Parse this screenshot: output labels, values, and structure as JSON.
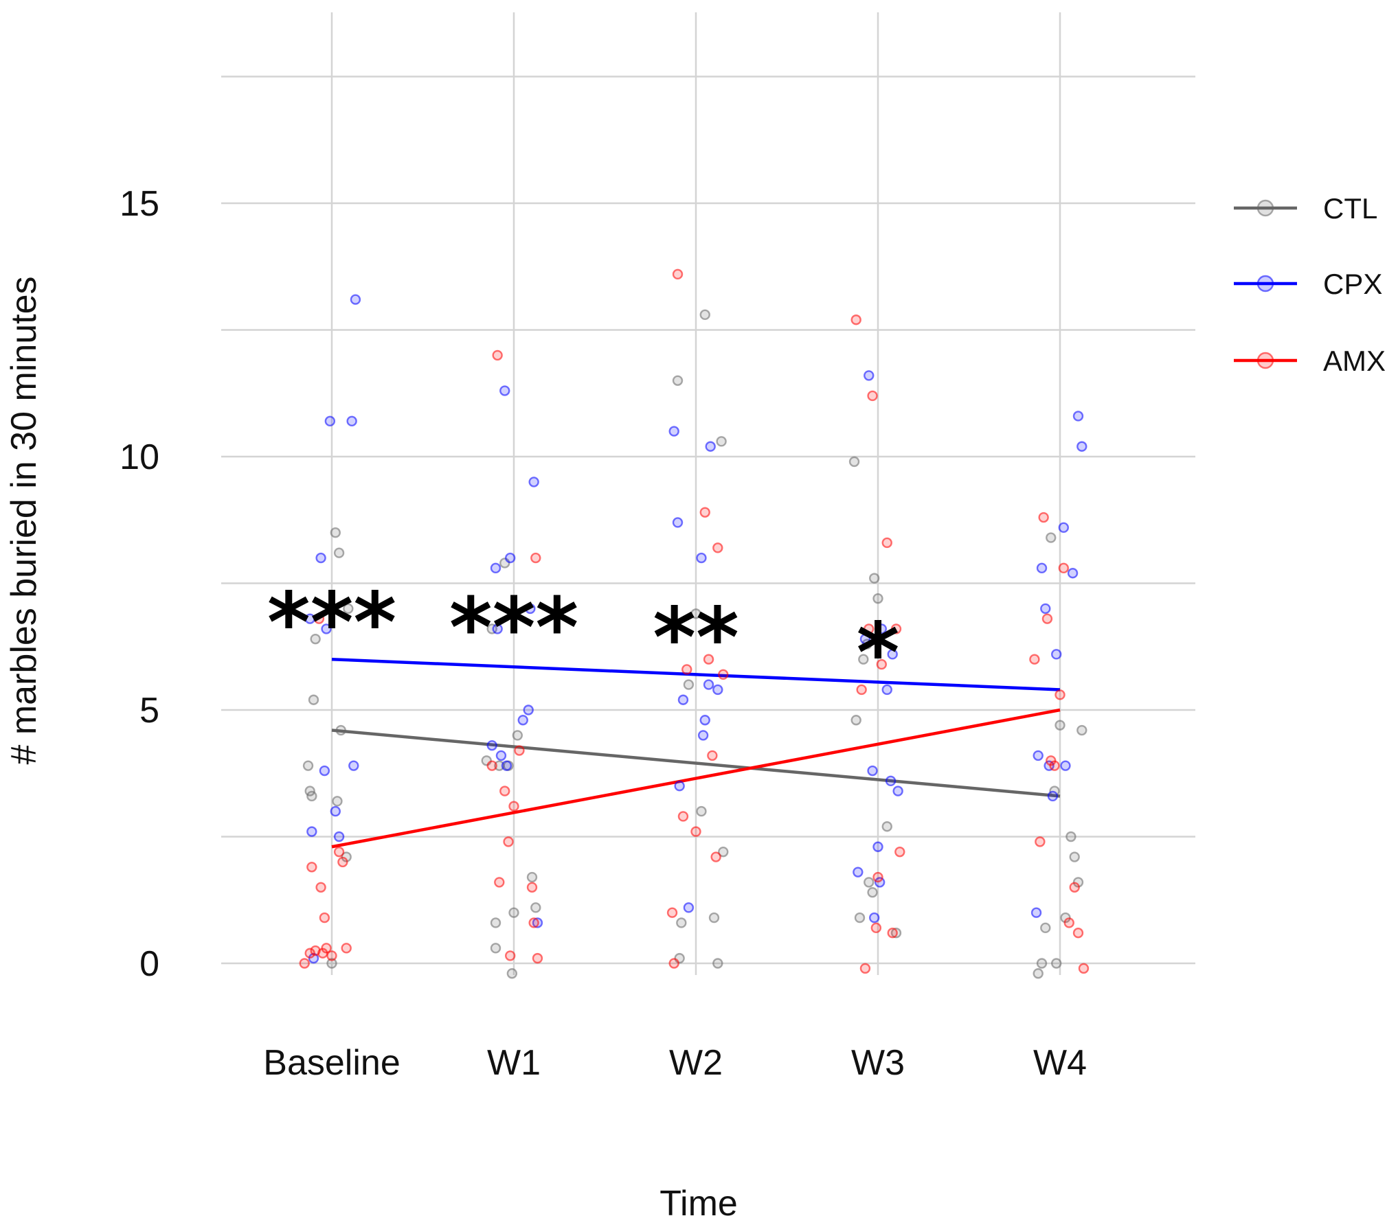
{
  "chart_data": {
    "type": "scatter",
    "title": "",
    "xlabel": "Time",
    "ylabel": "# marbles buried in 30 minutes",
    "categories": [
      "Baseline",
      "W1",
      "W2",
      "W3",
      "W4"
    ],
    "ylim": [
      -0.5,
      18.5
    ],
    "yticks": [
      0,
      5,
      10,
      15
    ],
    "grid": true,
    "legend_position": "right",
    "series": [
      {
        "name": "CTL",
        "color": "#666666",
        "trend_start": 4.6,
        "trend_end": 3.3,
        "points": [
          [
            -0.13,
            3.9
          ],
          [
            -0.12,
            3.4
          ],
          [
            -0.11,
            3.3
          ],
          [
            -0.1,
            5.2
          ],
          [
            -0.09,
            6.4
          ],
          [
            0.02,
            8.5
          ],
          [
            0.03,
            3.2
          ],
          [
            0.04,
            8.1
          ],
          [
            0.05,
            4.6
          ],
          [
            0.08,
            2.1
          ],
          [
            0.09,
            7.0
          ],
          [
            0.0,
            0.0
          ],
          [
            0.85,
            4.0
          ],
          [
            0.88,
            6.6
          ],
          [
            0.9,
            0.8
          ],
          [
            0.9,
            0.3
          ],
          [
            0.92,
            3.9
          ],
          [
            0.95,
            7.9
          ],
          [
            0.97,
            3.9
          ],
          [
            0.99,
            -0.2
          ],
          [
            1.0,
            1.0
          ],
          [
            1.02,
            4.5
          ],
          [
            1.1,
            1.7
          ],
          [
            1.12,
            1.1
          ],
          [
            1.9,
            11.5
          ],
          [
            1.91,
            0.1
          ],
          [
            1.92,
            0.8
          ],
          [
            1.96,
            5.5
          ],
          [
            2.0,
            6.9
          ],
          [
            2.03,
            3.0
          ],
          [
            2.05,
            12.8
          ],
          [
            2.1,
            0.9
          ],
          [
            2.12,
            0.0
          ],
          [
            2.14,
            10.3
          ],
          [
            2.15,
            2.2
          ],
          [
            2.87,
            9.9
          ],
          [
            2.88,
            4.8
          ],
          [
            2.9,
            0.9
          ],
          [
            2.92,
            6.0
          ],
          [
            2.94,
            6.3
          ],
          [
            2.95,
            1.6
          ],
          [
            2.97,
            1.4
          ],
          [
            2.98,
            7.6
          ],
          [
            3.0,
            7.2
          ],
          [
            3.05,
            2.7
          ],
          [
            3.1,
            0.6
          ],
          [
            3.88,
            -0.2
          ],
          [
            3.9,
            0.0
          ],
          [
            3.92,
            0.7
          ],
          [
            3.95,
            8.4
          ],
          [
            3.97,
            3.4
          ],
          [
            3.98,
            0.0
          ],
          [
            4.0,
            4.7
          ],
          [
            4.03,
            0.9
          ],
          [
            4.06,
            2.5
          ],
          [
            4.08,
            2.1
          ],
          [
            4.1,
            1.6
          ],
          [
            4.12,
            4.6
          ]
        ]
      },
      {
        "name": "CPX",
        "color": "#0000ff",
        "trend_start": 6.0,
        "trend_end": 5.4,
        "points": [
          [
            -0.12,
            6.8
          ],
          [
            -0.11,
            2.6
          ],
          [
            -0.1,
            0.1
          ],
          [
            -0.06,
            8.0
          ],
          [
            -0.04,
            3.8
          ],
          [
            -0.03,
            6.6
          ],
          [
            -0.01,
            10.7
          ],
          [
            0.02,
            3.0
          ],
          [
            0.04,
            2.5
          ],
          [
            0.11,
            10.7
          ],
          [
            0.12,
            3.9
          ],
          [
            0.13,
            13.1
          ],
          [
            0.88,
            4.3
          ],
          [
            0.9,
            7.8
          ],
          [
            0.91,
            6.6
          ],
          [
            0.93,
            4.1
          ],
          [
            0.95,
            11.3
          ],
          [
            0.96,
            3.9
          ],
          [
            0.98,
            8.0
          ],
          [
            1.05,
            4.8
          ],
          [
            1.08,
            5.0
          ],
          [
            1.09,
            7.0
          ],
          [
            1.11,
            9.5
          ],
          [
            1.13,
            0.8
          ],
          [
            1.88,
            10.5
          ],
          [
            1.9,
            8.7
          ],
          [
            1.91,
            3.5
          ],
          [
            1.93,
            5.2
          ],
          [
            1.96,
            1.1
          ],
          [
            2.03,
            8.0
          ],
          [
            2.04,
            4.5
          ],
          [
            2.05,
            4.8
          ],
          [
            2.07,
            5.5
          ],
          [
            2.08,
            10.2
          ],
          [
            2.12,
            5.4
          ],
          [
            2.89,
            1.8
          ],
          [
            2.93,
            6.4
          ],
          [
            2.95,
            11.6
          ],
          [
            2.97,
            3.8
          ],
          [
            2.98,
            0.9
          ],
          [
            3.0,
            2.3
          ],
          [
            3.01,
            1.6
          ],
          [
            3.02,
            6.6
          ],
          [
            3.05,
            5.4
          ],
          [
            3.07,
            3.6
          ],
          [
            3.08,
            6.1
          ],
          [
            3.11,
            3.4
          ],
          [
            3.87,
            1.0
          ],
          [
            3.88,
            4.1
          ],
          [
            3.9,
            7.8
          ],
          [
            3.92,
            7.0
          ],
          [
            3.94,
            3.9
          ],
          [
            3.96,
            3.3
          ],
          [
            3.98,
            6.1
          ],
          [
            4.02,
            8.6
          ],
          [
            4.03,
            3.9
          ],
          [
            4.07,
            7.7
          ],
          [
            4.1,
            10.8
          ],
          [
            4.12,
            10.2
          ]
        ]
      },
      {
        "name": "AMX",
        "color": "#ff0000",
        "trend_start": 2.3,
        "trend_end": 5.0,
        "points": [
          [
            -0.15,
            0.0
          ],
          [
            -0.12,
            0.2
          ],
          [
            -0.11,
            1.9
          ],
          [
            -0.09,
            0.25
          ],
          [
            -0.07,
            6.8
          ],
          [
            -0.06,
            1.5
          ],
          [
            -0.05,
            0.2
          ],
          [
            -0.04,
            0.9
          ],
          [
            -0.03,
            0.3
          ],
          [
            0.0,
            0.15
          ],
          [
            0.04,
            2.2
          ],
          [
            0.06,
            2.0
          ],
          [
            0.08,
            0.3
          ],
          [
            0.88,
            3.9
          ],
          [
            0.91,
            12.0
          ],
          [
            0.92,
            1.6
          ],
          [
            0.95,
            3.4
          ],
          [
            0.97,
            2.4
          ],
          [
            0.98,
            0.15
          ],
          [
            1.0,
            3.1
          ],
          [
            1.03,
            4.2
          ],
          [
            1.1,
            1.5
          ],
          [
            1.11,
            0.8
          ],
          [
            1.12,
            8.0
          ],
          [
            1.13,
            0.1
          ],
          [
            1.87,
            1.0
          ],
          [
            1.88,
            0.0
          ],
          [
            1.9,
            13.6
          ],
          [
            1.93,
            2.9
          ],
          [
            1.95,
            5.8
          ],
          [
            2.0,
            2.6
          ],
          [
            2.05,
            8.9
          ],
          [
            2.07,
            6.0
          ],
          [
            2.09,
            4.1
          ],
          [
            2.11,
            2.1
          ],
          [
            2.12,
            8.2
          ],
          [
            2.15,
            5.7
          ],
          [
            2.88,
            12.7
          ],
          [
            2.91,
            5.4
          ],
          [
            2.93,
            -0.1
          ],
          [
            2.95,
            6.6
          ],
          [
            2.97,
            11.2
          ],
          [
            2.99,
            0.7
          ],
          [
            3.0,
            1.7
          ],
          [
            3.02,
            5.9
          ],
          [
            3.05,
            8.3
          ],
          [
            3.08,
            0.6
          ],
          [
            3.1,
            6.6
          ],
          [
            3.12,
            2.2
          ],
          [
            3.86,
            6.0
          ],
          [
            3.89,
            2.4
          ],
          [
            3.91,
            8.8
          ],
          [
            3.93,
            6.8
          ],
          [
            3.95,
            4.0
          ],
          [
            3.97,
            3.9
          ],
          [
            4.0,
            5.3
          ],
          [
            4.02,
            7.8
          ],
          [
            4.05,
            0.8
          ],
          [
            4.08,
            1.5
          ],
          [
            4.1,
            0.6
          ],
          [
            4.13,
            -0.1
          ]
        ]
      }
    ],
    "annotations": [
      {
        "category": "Baseline",
        "text": "***",
        "y": 7.0
      },
      {
        "category": "W1",
        "text": "***",
        "y": 6.9
      },
      {
        "category": "W2",
        "text": "**",
        "y": 6.7
      },
      {
        "category": "W3",
        "text": "*",
        "y": 6.4
      }
    ]
  }
}
